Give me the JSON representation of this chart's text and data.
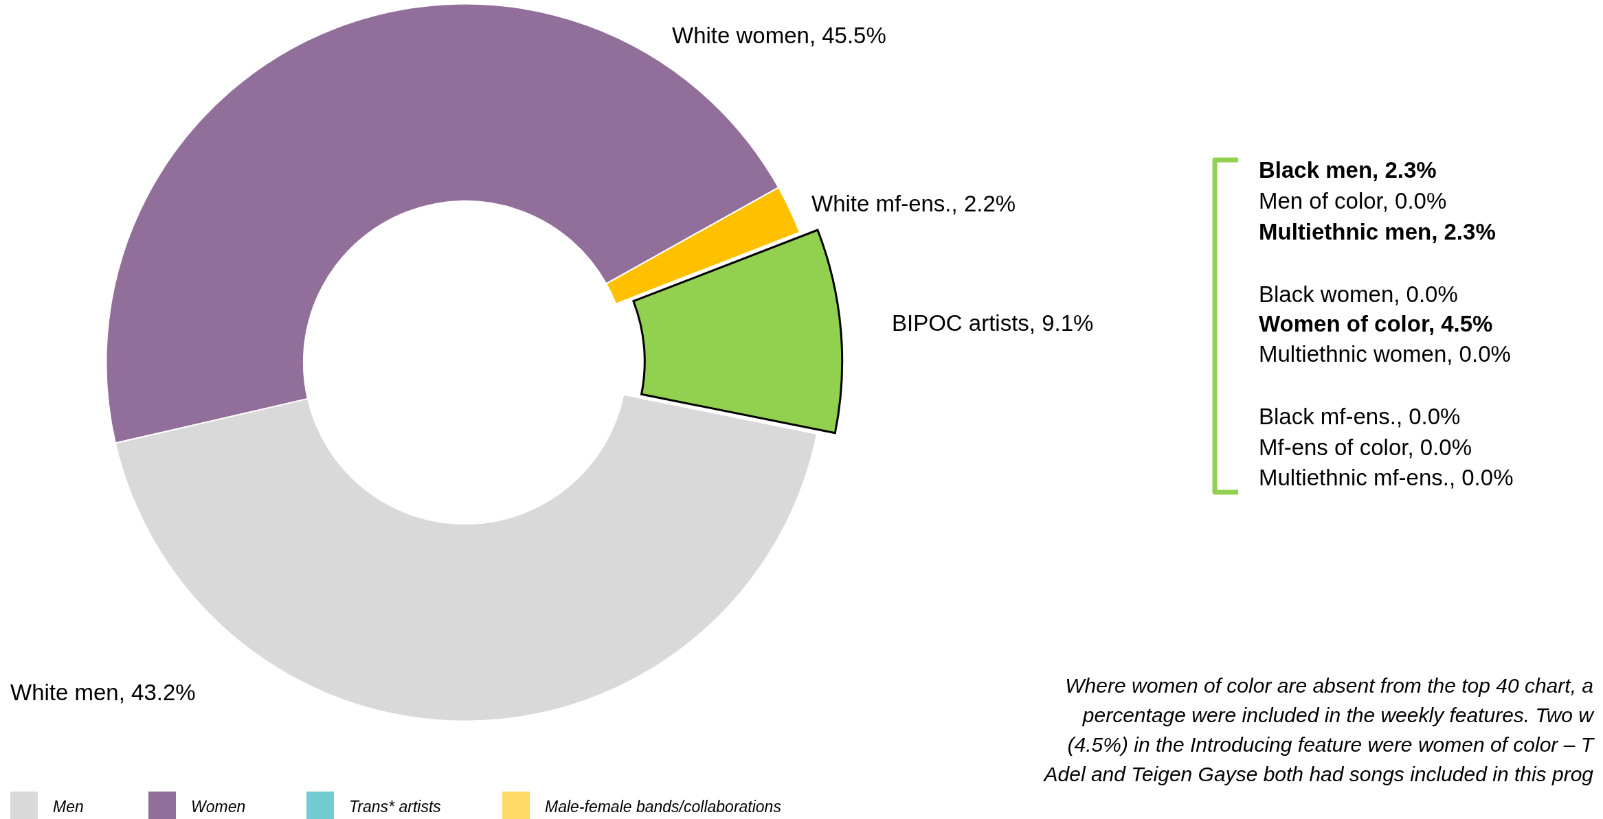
{
  "chart_data": {
    "type": "donut",
    "categories": [
      "White women",
      "White mf-ens.",
      "BIPOC artists",
      "White men"
    ],
    "values": [
      45.5,
      2.2,
      9.1,
      43.2
    ],
    "colors": [
      "#926f9a",
      "#ffc000",
      "#92d050",
      "#d9d9d9"
    ],
    "value_labels": [
      "45.5%",
      "2.2%",
      "9.1%",
      "43.2%"
    ],
    "annotations": [
      "Black men, 2.3%",
      "Men of color, 0.0%",
      "Multiethnic men, 2.3%",
      "Black women, 0.0%",
      "Women of color, 4.5%",
      "Multiethnic women, 0.0%",
      "Black mf-ens., 0.0%",
      "Mf-ens of color, 0.0%",
      "Multiethnic mf-ens., 0.0%",
      "Where women of color are absent from the top 40 chart, a",
      "percentage were included in the weekly features. Two w",
      "(4.5%) in the Introducing feature were women of color – T",
      "Adel and Teigen Gayse both had songs included in this prog",
      "Men",
      "Women",
      "Trans* artists",
      "Male-female bands/collaborations"
    ]
  }
}
